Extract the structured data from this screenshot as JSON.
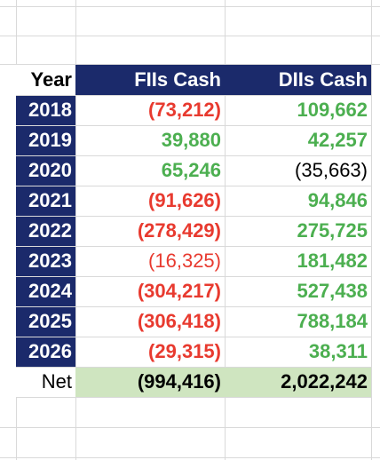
{
  "table": {
    "header": [
      "Year",
      "FIIs Cash",
      "DIIs Cash"
    ],
    "rows": [
      [
        "2018",
        "(73,212)",
        "109,662"
      ],
      [
        "2019",
        "39,880",
        "42,257"
      ],
      [
        "2020",
        "65,246",
        "(35,663)"
      ],
      [
        "2021",
        "(91,626)",
        "94,846"
      ],
      [
        "2022",
        "(278,429)",
        "275,725"
      ],
      [
        "2023",
        "(16,325)",
        "181,482"
      ],
      [
        "2024",
        "(304,217)",
        "527,438"
      ],
      [
        "2025",
        "(306,418)",
        "788,184"
      ],
      [
        "2026",
        "(29,315)",
        "38,311"
      ]
    ],
    "total": [
      "Net",
      "(994,416)",
      "2,022,242"
    ]
  }
}
